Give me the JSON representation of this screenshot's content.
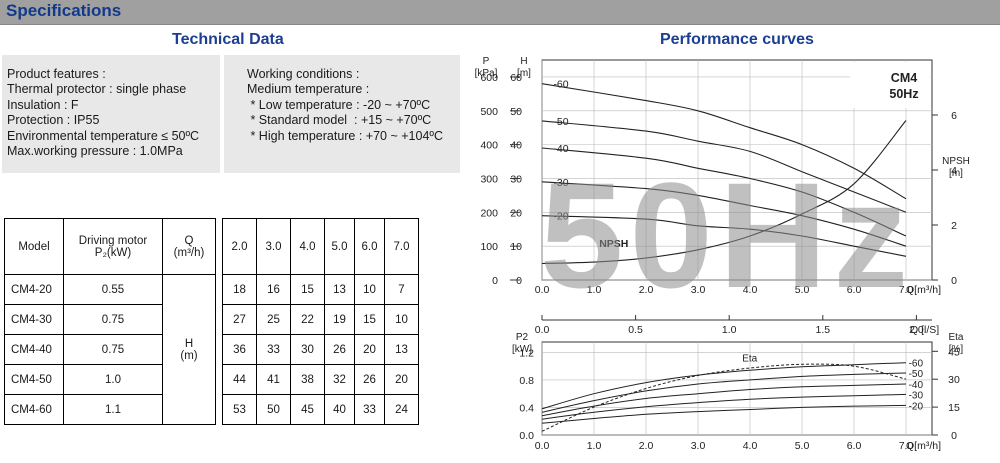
{
  "header": {
    "title": "Specifications"
  },
  "technical_data": {
    "title": "Technical Data",
    "features": [
      "Product features :",
      "Thermal protector : single phase",
      "Insulation : F",
      "Protection : IP55",
      "Environmental temperature ≤ 50ºC",
      "Max.working pressure : 1.0MPa"
    ],
    "conditions": [
      "Working conditions :",
      "Medium temperature :",
      " * Low temperature : -20 ~ +70ºC",
      " * Standard model  : +15 ~ +70ºC",
      " * High temperature : +70 ~ +104ºC"
    ]
  },
  "table": {
    "col_model": "Model",
    "col_motor": "Driving motor",
    "col_motor_unit": "P₂(kW)",
    "col_q": "Q",
    "col_q_unit": "(m³/h)",
    "q_values": [
      "2.0",
      "3.0",
      "4.0",
      "5.0",
      "6.0",
      "7.0"
    ],
    "h_label": "H",
    "h_unit": "(m)",
    "rows": [
      {
        "model": "CM4-20",
        "power": "0.55",
        "h": [
          "18",
          "16",
          "15",
          "13",
          "10",
          "7"
        ]
      },
      {
        "model": "CM4-30",
        "power": "0.75",
        "h": [
          "27",
          "25",
          "22",
          "19",
          "15",
          "10"
        ]
      },
      {
        "model": "CM4-40",
        "power": "0.75",
        "h": [
          "36",
          "33",
          "30",
          "26",
          "20",
          "13"
        ]
      },
      {
        "model": "CM4-50",
        "power": "1.0",
        "h": [
          "44",
          "41",
          "38",
          "32",
          "26",
          "20"
        ]
      },
      {
        "model": "CM4-60",
        "power": "1.1",
        "h": [
          "53",
          "50",
          "45",
          "40",
          "33",
          "24"
        ]
      }
    ]
  },
  "performance": {
    "title": "Performance curves",
    "model": "CM4",
    "freq": "50Hz",
    "watermark": "50Hz",
    "npsh_label": "NPSH",
    "eta_label": "Eta",
    "line_color": "#222222",
    "watermark_color": "#8c8c8c"
  },
  "chart_data": [
    {
      "type": "line",
      "title": "Performance curves",
      "x_label": "Q[m³/h]",
      "x_ticks": [
        "0.0",
        "1.0",
        "2.0",
        "3.0",
        "4.0",
        "5.0",
        "6.0",
        "7.0"
      ],
      "x2_label": "Q [l/S]",
      "x2_ticks": [
        "0.0",
        "0.5",
        "1.0",
        "1.5",
        "2.0"
      ],
      "y_label": "H [m]",
      "y_ticks": [
        "0",
        "10",
        "20",
        "30",
        "40",
        "50",
        "60"
      ],
      "ylim": [
        0,
        65
      ],
      "y_left_label": "P [kPa]",
      "y_left_ticks": [
        "0",
        "100",
        "200",
        "300",
        "400",
        "500",
        "600"
      ],
      "y_right_label": "NPSH [m]",
      "y_right_ticks": [
        "0",
        "2",
        "4",
        "6"
      ],
      "xlim": [
        0,
        7.5
      ],
      "series": [
        {
          "name": "-60",
          "x": [
            0,
            2,
            3,
            4,
            5,
            6,
            7
          ],
          "y": [
            58,
            53,
            50,
            45,
            40,
            33,
            24
          ]
        },
        {
          "name": "-50",
          "x": [
            0,
            2,
            3,
            4,
            5,
            6,
            7
          ],
          "y": [
            47,
            44,
            41,
            38,
            32,
            26,
            20
          ]
        },
        {
          "name": "-40",
          "x": [
            0,
            2,
            3,
            4,
            5,
            6,
            7
          ],
          "y": [
            39,
            36,
            33,
            30,
            26,
            20,
            13
          ]
        },
        {
          "name": "-30",
          "x": [
            0,
            2,
            3,
            4,
            5,
            6,
            7
          ],
          "y": [
            29,
            27,
            25,
            22,
            19,
            15,
            10
          ]
        },
        {
          "name": "-20",
          "x": [
            0,
            2,
            3,
            4,
            5,
            6,
            7
          ],
          "y": [
            19,
            18,
            16,
            15,
            13,
            10,
            7
          ]
        },
        {
          "name": "NPSH",
          "x": [
            0,
            1,
            2,
            3,
            4,
            5,
            6,
            7
          ],
          "y": [
            0.6,
            0.65,
            0.8,
            1.1,
            1.6,
            2.4,
            3.5,
            5.8
          ]
        }
      ]
    },
    {
      "type": "line",
      "x_label": "Q[m³/h]",
      "x_ticks": [
        "0.0",
        "1.0",
        "2.0",
        "3.0",
        "4.0",
        "5.0",
        "6.0",
        "7.0"
      ],
      "xlim": [
        0,
        7.5
      ],
      "y_label": "P2 [kW]",
      "y_ticks": [
        "0.0",
        "0.4",
        "0.8",
        "1.2"
      ],
      "ylim": [
        0,
        1.35
      ],
      "y_right_label": "Eta [%]",
      "y_right_ticks": [
        "0",
        "15",
        "30",
        "45"
      ],
      "series": [
        {
          "name": "-60",
          "x": [
            0,
            1,
            2,
            3,
            4,
            5,
            6,
            7
          ],
          "y": [
            0.38,
            0.6,
            0.76,
            0.87,
            0.94,
            0.99,
            1.02,
            1.05
          ]
        },
        {
          "name": "-50",
          "x": [
            0,
            1,
            2,
            3,
            4,
            5,
            6,
            7
          ],
          "y": [
            0.33,
            0.5,
            0.64,
            0.74,
            0.8,
            0.85,
            0.88,
            0.9
          ]
        },
        {
          "name": "-40",
          "x": [
            0,
            1,
            2,
            3,
            4,
            5,
            6,
            7
          ],
          "y": [
            0.28,
            0.42,
            0.53,
            0.6,
            0.66,
            0.7,
            0.72,
            0.74
          ]
        },
        {
          "name": "-30",
          "x": [
            0,
            1,
            2,
            3,
            4,
            5,
            6,
            7
          ],
          "y": [
            0.23,
            0.33,
            0.41,
            0.47,
            0.52,
            0.55,
            0.57,
            0.59
          ]
        },
        {
          "name": "-20",
          "x": [
            0,
            1,
            2,
            3,
            4,
            5,
            6,
            7
          ],
          "y": [
            0.17,
            0.24,
            0.3,
            0.34,
            0.37,
            0.4,
            0.42,
            0.43
          ]
        },
        {
          "name": "Eta",
          "x": [
            0,
            1,
            2,
            3,
            4,
            5,
            6,
            7
          ],
          "y": [
            2,
            15,
            25,
            32,
            36,
            38,
            37,
            30
          ]
        }
      ]
    }
  ]
}
